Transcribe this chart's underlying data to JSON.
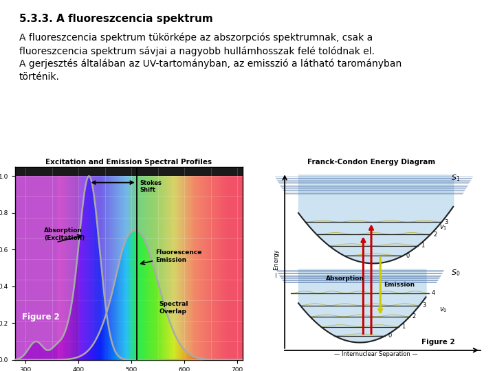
{
  "title": "5.3.3. A fluoreszcencia spektrum",
  "title_fontsize": 11,
  "body_text": [
    "A fluoreszcencia spektrum tükörképe az abszorpciós spektrumnak, csak a",
    "fluoreszcencia spektrum sávjai a nagyobb hullámhosszak felé tolódnak el.",
    "A gerjesztés általában az UV-tartományban, az emisszió a látható tarományban",
    "történik."
  ],
  "body_fontsize": 10,
  "background_color": "#ffffff",
  "text_color": "#000000"
}
